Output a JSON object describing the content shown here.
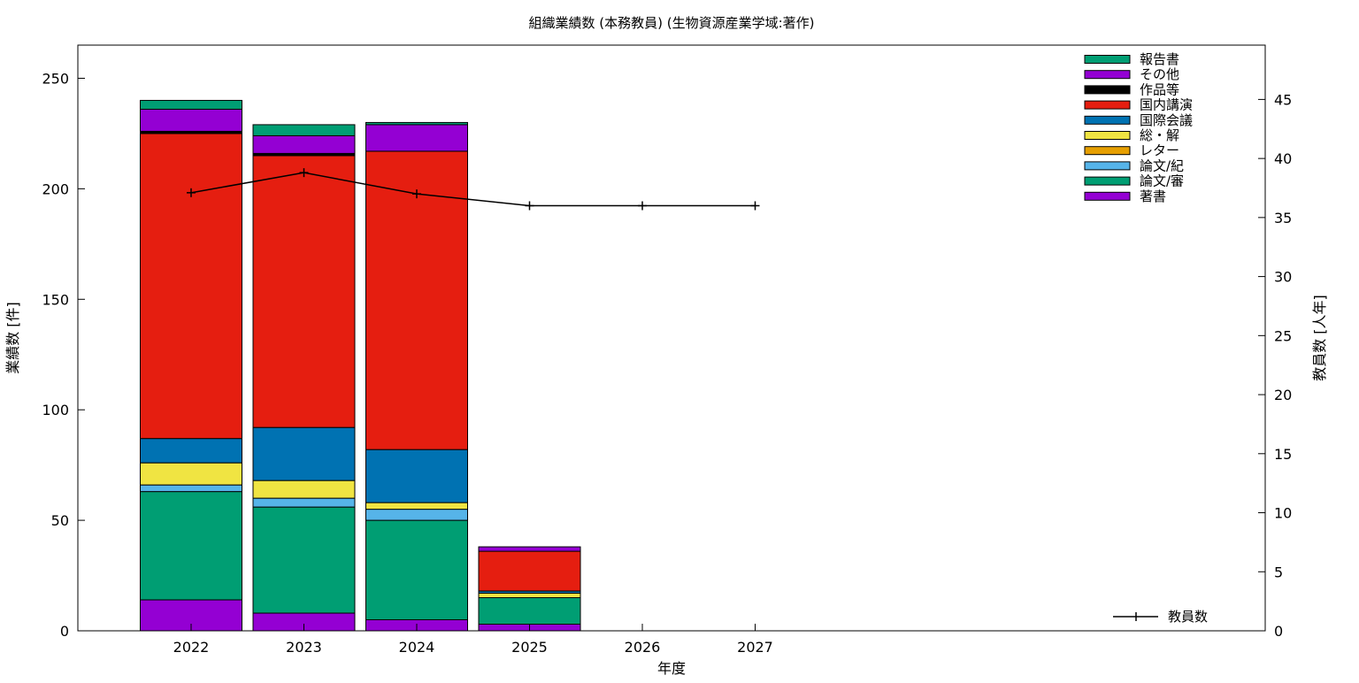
{
  "chart_data": {
    "type": "bar",
    "stacked": true,
    "title": "組織業績数 (本務教員) (生物資源産業学域:著作)",
    "xlabel": "年度",
    "ylabel": "業績数 [件]",
    "y2label": "教員数 [人年]",
    "categories": [
      "2022",
      "2023",
      "2024",
      "2025",
      "2026",
      "2027"
    ],
    "ylim": [
      0,
      265
    ],
    "y2lim": [
      0,
      49.6
    ],
    "yticks": [
      0,
      50,
      100,
      150,
      200,
      250
    ],
    "y2ticks": [
      0,
      5,
      10,
      15,
      20,
      25,
      30,
      35,
      40,
      45
    ],
    "grid": false,
    "legend_position": "top-right",
    "series": [
      {
        "name": "著書",
        "color": "#9400d3",
        "values": [
          14,
          8,
          5,
          3,
          null,
          null
        ]
      },
      {
        "name": "論文/審",
        "color": "#009e73",
        "values": [
          49,
          48,
          45,
          12,
          null,
          null
        ]
      },
      {
        "name": "論文/紀",
        "color": "#56b4e9",
        "values": [
          3,
          4,
          5,
          0,
          null,
          null
        ]
      },
      {
        "name": "レター",
        "color": "#e69f00",
        "values": [
          0,
          0,
          0,
          0,
          null,
          null
        ]
      },
      {
        "name": "総・解",
        "color": "#f0e442",
        "values": [
          10,
          8,
          3,
          2,
          null,
          null
        ]
      },
      {
        "name": "国際会議",
        "color": "#0072b2",
        "values": [
          11,
          24,
          24,
          1,
          null,
          null
        ]
      },
      {
        "name": "国内講演",
        "color": "#e51e10",
        "values": [
          138,
          123,
          135,
          18,
          null,
          null
        ]
      },
      {
        "name": "作品等",
        "color": "#000000",
        "values": [
          1,
          1,
          0,
          0,
          null,
          null
        ]
      },
      {
        "name": "その他",
        "color": "#9400d3",
        "values": [
          10,
          8,
          12,
          2,
          null,
          null
        ]
      },
      {
        "name": "報告書",
        "color": "#009e73",
        "values": [
          4,
          5,
          1,
          0,
          null,
          null
        ]
      }
    ],
    "line_series": {
      "name": "教員数",
      "color": "#000000",
      "axis": "y2",
      "values": [
        37.1,
        38.8,
        37.0,
        36.0,
        36.0,
        36.0
      ]
    }
  }
}
